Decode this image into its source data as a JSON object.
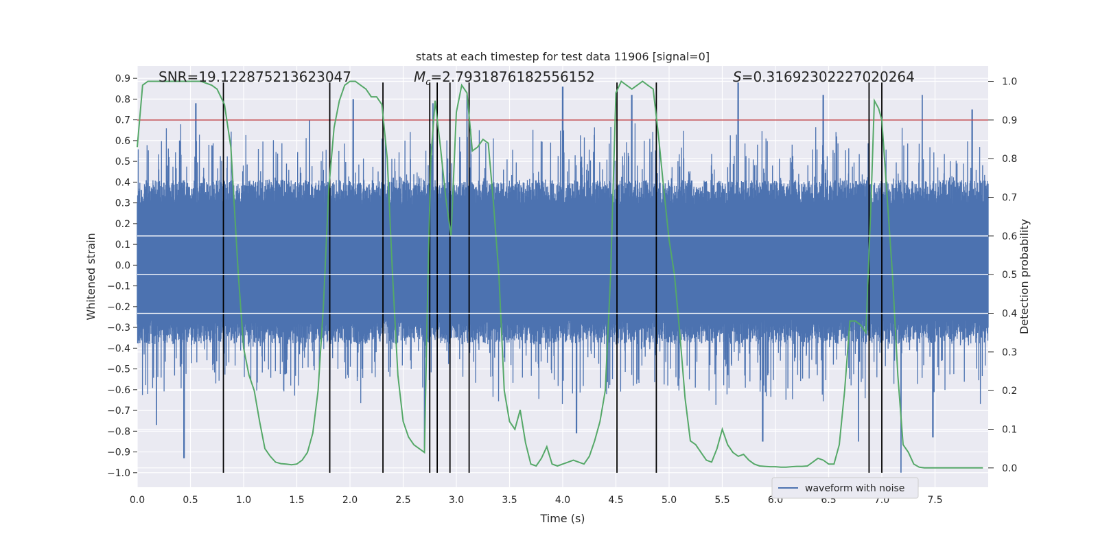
{
  "chart_data": {
    "type": "line",
    "title": "stats at each timestep for test data 11906 [signal=0]",
    "xlabel": "Time (s)",
    "ylabel_left": "Whitened strain",
    "ylabel_right": "Detection probability",
    "xlim": [
      0,
      8
    ],
    "ylim_left": [
      -1.07,
      0.96
    ],
    "ylim_right": [
      -0.05,
      1.04
    ],
    "x_ticks": [
      0.0,
      0.5,
      1.0,
      1.5,
      2.0,
      2.5,
      3.0,
      3.5,
      4.0,
      4.5,
      5.0,
      5.5,
      6.0,
      6.5,
      7.0,
      7.5
    ],
    "x_tick_labels": [
      "0.0",
      "0.5",
      "1.0",
      "1.5",
      "2.0",
      "2.5",
      "3.0",
      "3.5",
      "4.0",
      "4.5",
      "5.0",
      "5.5",
      "6.0",
      "6.5",
      "7.0",
      "7.5"
    ],
    "y_left_ticks": [
      0.9,
      0.8,
      0.7,
      0.6,
      0.5,
      0.4,
      0.3,
      0.2,
      0.1,
      0.0,
      -0.1,
      -0.2,
      -0.3,
      -0.4,
      -0.5,
      -0.6,
      -0.7,
      -0.8,
      -0.9,
      -1.0
    ],
    "y_left_tick_labels": [
      "0.9",
      "0.8",
      "0.7",
      "0.6",
      "0.5",
      "0.4",
      "0.3",
      "0.2",
      "0.1",
      "0.0",
      "−0.1",
      "−0.2",
      "−0.3",
      "−0.4",
      "−0.5",
      "−0.6",
      "−0.7",
      "−0.8",
      "−0.9",
      "−1.0"
    ],
    "y_right_ticks": [
      1.0,
      0.9,
      0.8,
      0.7,
      0.6,
      0.5,
      0.4,
      0.3,
      0.2,
      0.1,
      0.0
    ],
    "y_right_tick_labels": [
      "1.0",
      "0.9",
      "0.8",
      "0.7",
      "0.6",
      "0.5",
      "0.4",
      "0.3",
      "0.2",
      "0.1",
      "0.0"
    ],
    "grid": true,
    "legend_position": "lower-right",
    "annotations": [
      {
        "text": "SNR=19.122875213623047",
        "x": 0.2,
        "y": 0.91
      },
      {
        "text": "=2.7931876182556152",
        "symbol": "M",
        "subscript": "c",
        "x": 2.6,
        "y": 0.91
      },
      {
        "text": "=0.31692302227020264",
        "symbol": "S",
        "x": 5.6,
        "y": 0.91
      }
    ],
    "threshold": {
      "axis": "right",
      "value": 0.9,
      "color": "#c44e52"
    },
    "vertical_markers": {
      "x": [
        0.81,
        1.81,
        2.31,
        2.75,
        2.82,
        2.94,
        3.12,
        4.51,
        4.88,
        6.88,
        7.0
      ],
      "y_range": [
        -1.0,
        0.88
      ],
      "color": "#000000"
    },
    "series": [
      {
        "name": "waveform with noise",
        "axis": "left",
        "color": "#4c72b0",
        "kind": "noise",
        "dense_band": [
          -0.26,
          0.29
        ],
        "sample_rate_hz": 2048,
        "peak_high": [
          [
            0.55,
            0.78
          ],
          [
            1.62,
            0.7
          ],
          [
            2.03,
            0.8
          ],
          [
            2.78,
            0.78
          ],
          [
            3.1,
            0.82
          ],
          [
            4.0,
            0.86
          ],
          [
            4.65,
            0.82
          ],
          [
            5.65,
            0.88
          ],
          [
            6.45,
            0.82
          ],
          [
            7.38,
            0.82
          ],
          [
            7.85,
            0.75
          ]
        ],
        "peak_low": [
          [
            0.44,
            -0.93
          ],
          [
            0.18,
            -0.77
          ],
          [
            2.7,
            -0.88
          ],
          [
            4.13,
            -0.81
          ],
          [
            5.88,
            -0.85
          ],
          [
            6.78,
            -0.85
          ],
          [
            7.18,
            -1.0
          ],
          [
            7.48,
            -0.83
          ]
        ]
      },
      {
        "name": "Detection probability",
        "axis": "right",
        "color": "#55a868",
        "x": [
          0.0,
          0.05,
          0.1,
          0.2,
          0.3,
          0.4,
          0.5,
          0.6,
          0.7,
          0.75,
          0.82,
          0.88,
          0.95,
          1.0,
          1.05,
          1.1,
          1.15,
          1.2,
          1.25,
          1.3,
          1.35,
          1.4,
          1.45,
          1.5,
          1.55,
          1.6,
          1.65,
          1.7,
          1.75,
          1.8,
          1.85,
          1.9,
          1.95,
          2.0,
          2.05,
          2.1,
          2.15,
          2.2,
          2.25,
          2.3,
          2.35,
          2.4,
          2.45,
          2.5,
          2.55,
          2.6,
          2.65,
          2.7,
          2.73,
          2.76,
          2.8,
          2.85,
          2.9,
          2.95,
          3.0,
          3.05,
          3.1,
          3.15,
          3.2,
          3.25,
          3.3,
          3.35,
          3.4,
          3.45,
          3.5,
          3.55,
          3.6,
          3.65,
          3.7,
          3.75,
          3.8,
          3.85,
          3.9,
          3.95,
          4.0,
          4.05,
          4.1,
          4.15,
          4.2,
          4.25,
          4.3,
          4.35,
          4.4,
          4.45,
          4.5,
          4.55,
          4.6,
          4.65,
          4.7,
          4.75,
          4.8,
          4.85,
          4.9,
          4.95,
          5.0,
          5.05,
          5.1,
          5.15,
          5.2,
          5.25,
          5.3,
          5.35,
          5.4,
          5.45,
          5.5,
          5.55,
          5.6,
          5.65,
          5.7,
          5.75,
          5.8,
          5.85,
          5.9,
          5.95,
          6.0,
          6.05,
          6.1,
          6.15,
          6.2,
          6.25,
          6.3,
          6.35,
          6.4,
          6.45,
          6.5,
          6.55,
          6.6,
          6.65,
          6.7,
          6.75,
          6.8,
          6.85,
          6.9,
          6.93,
          6.97,
          7.0,
          7.05,
          7.1,
          7.15,
          7.2,
          7.25,
          7.3,
          7.35,
          7.4,
          7.5,
          7.6,
          7.7,
          7.8,
          7.95
        ],
        "values": [
          0.83,
          0.99,
          1.0,
          1.0,
          1.0,
          1.0,
          1.0,
          1.0,
          0.99,
          0.98,
          0.94,
          0.83,
          0.5,
          0.31,
          0.24,
          0.2,
          0.12,
          0.05,
          0.03,
          0.015,
          0.011,
          0.01,
          0.008,
          0.01,
          0.02,
          0.04,
          0.09,
          0.2,
          0.42,
          0.72,
          0.88,
          0.95,
          0.99,
          1.0,
          1.0,
          0.99,
          0.98,
          0.96,
          0.96,
          0.94,
          0.8,
          0.5,
          0.24,
          0.12,
          0.08,
          0.06,
          0.05,
          0.04,
          0.45,
          0.8,
          0.95,
          0.83,
          0.7,
          0.6,
          0.92,
          0.99,
          0.97,
          0.82,
          0.83,
          0.85,
          0.84,
          0.68,
          0.5,
          0.2,
          0.12,
          0.1,
          0.15,
          0.065,
          0.01,
          0.005,
          0.025,
          0.055,
          0.01,
          0.005,
          0.01,
          0.015,
          0.02,
          0.015,
          0.01,
          0.03,
          0.07,
          0.12,
          0.2,
          0.5,
          0.97,
          1.0,
          0.99,
          0.98,
          0.99,
          1.0,
          0.99,
          0.98,
          0.86,
          0.72,
          0.59,
          0.5,
          0.35,
          0.18,
          0.07,
          0.06,
          0.04,
          0.02,
          0.015,
          0.05,
          0.1,
          0.06,
          0.04,
          0.03,
          0.035,
          0.02,
          0.01,
          0.005,
          0.004,
          0.003,
          0.003,
          0.002,
          0.002,
          0.003,
          0.004,
          0.004,
          0.005,
          0.015,
          0.025,
          0.02,
          0.01,
          0.01,
          0.06,
          0.2,
          0.38,
          0.38,
          0.37,
          0.35,
          0.7,
          0.95,
          0.93,
          0.9,
          0.7,
          0.5,
          0.24,
          0.06,
          0.04,
          0.01,
          0.002,
          0.0,
          0.0,
          0.0,
          0.0,
          0.0,
          0.0
        ]
      }
    ]
  },
  "legend": {
    "label": "waveform with noise",
    "color": "#4c72b0"
  }
}
